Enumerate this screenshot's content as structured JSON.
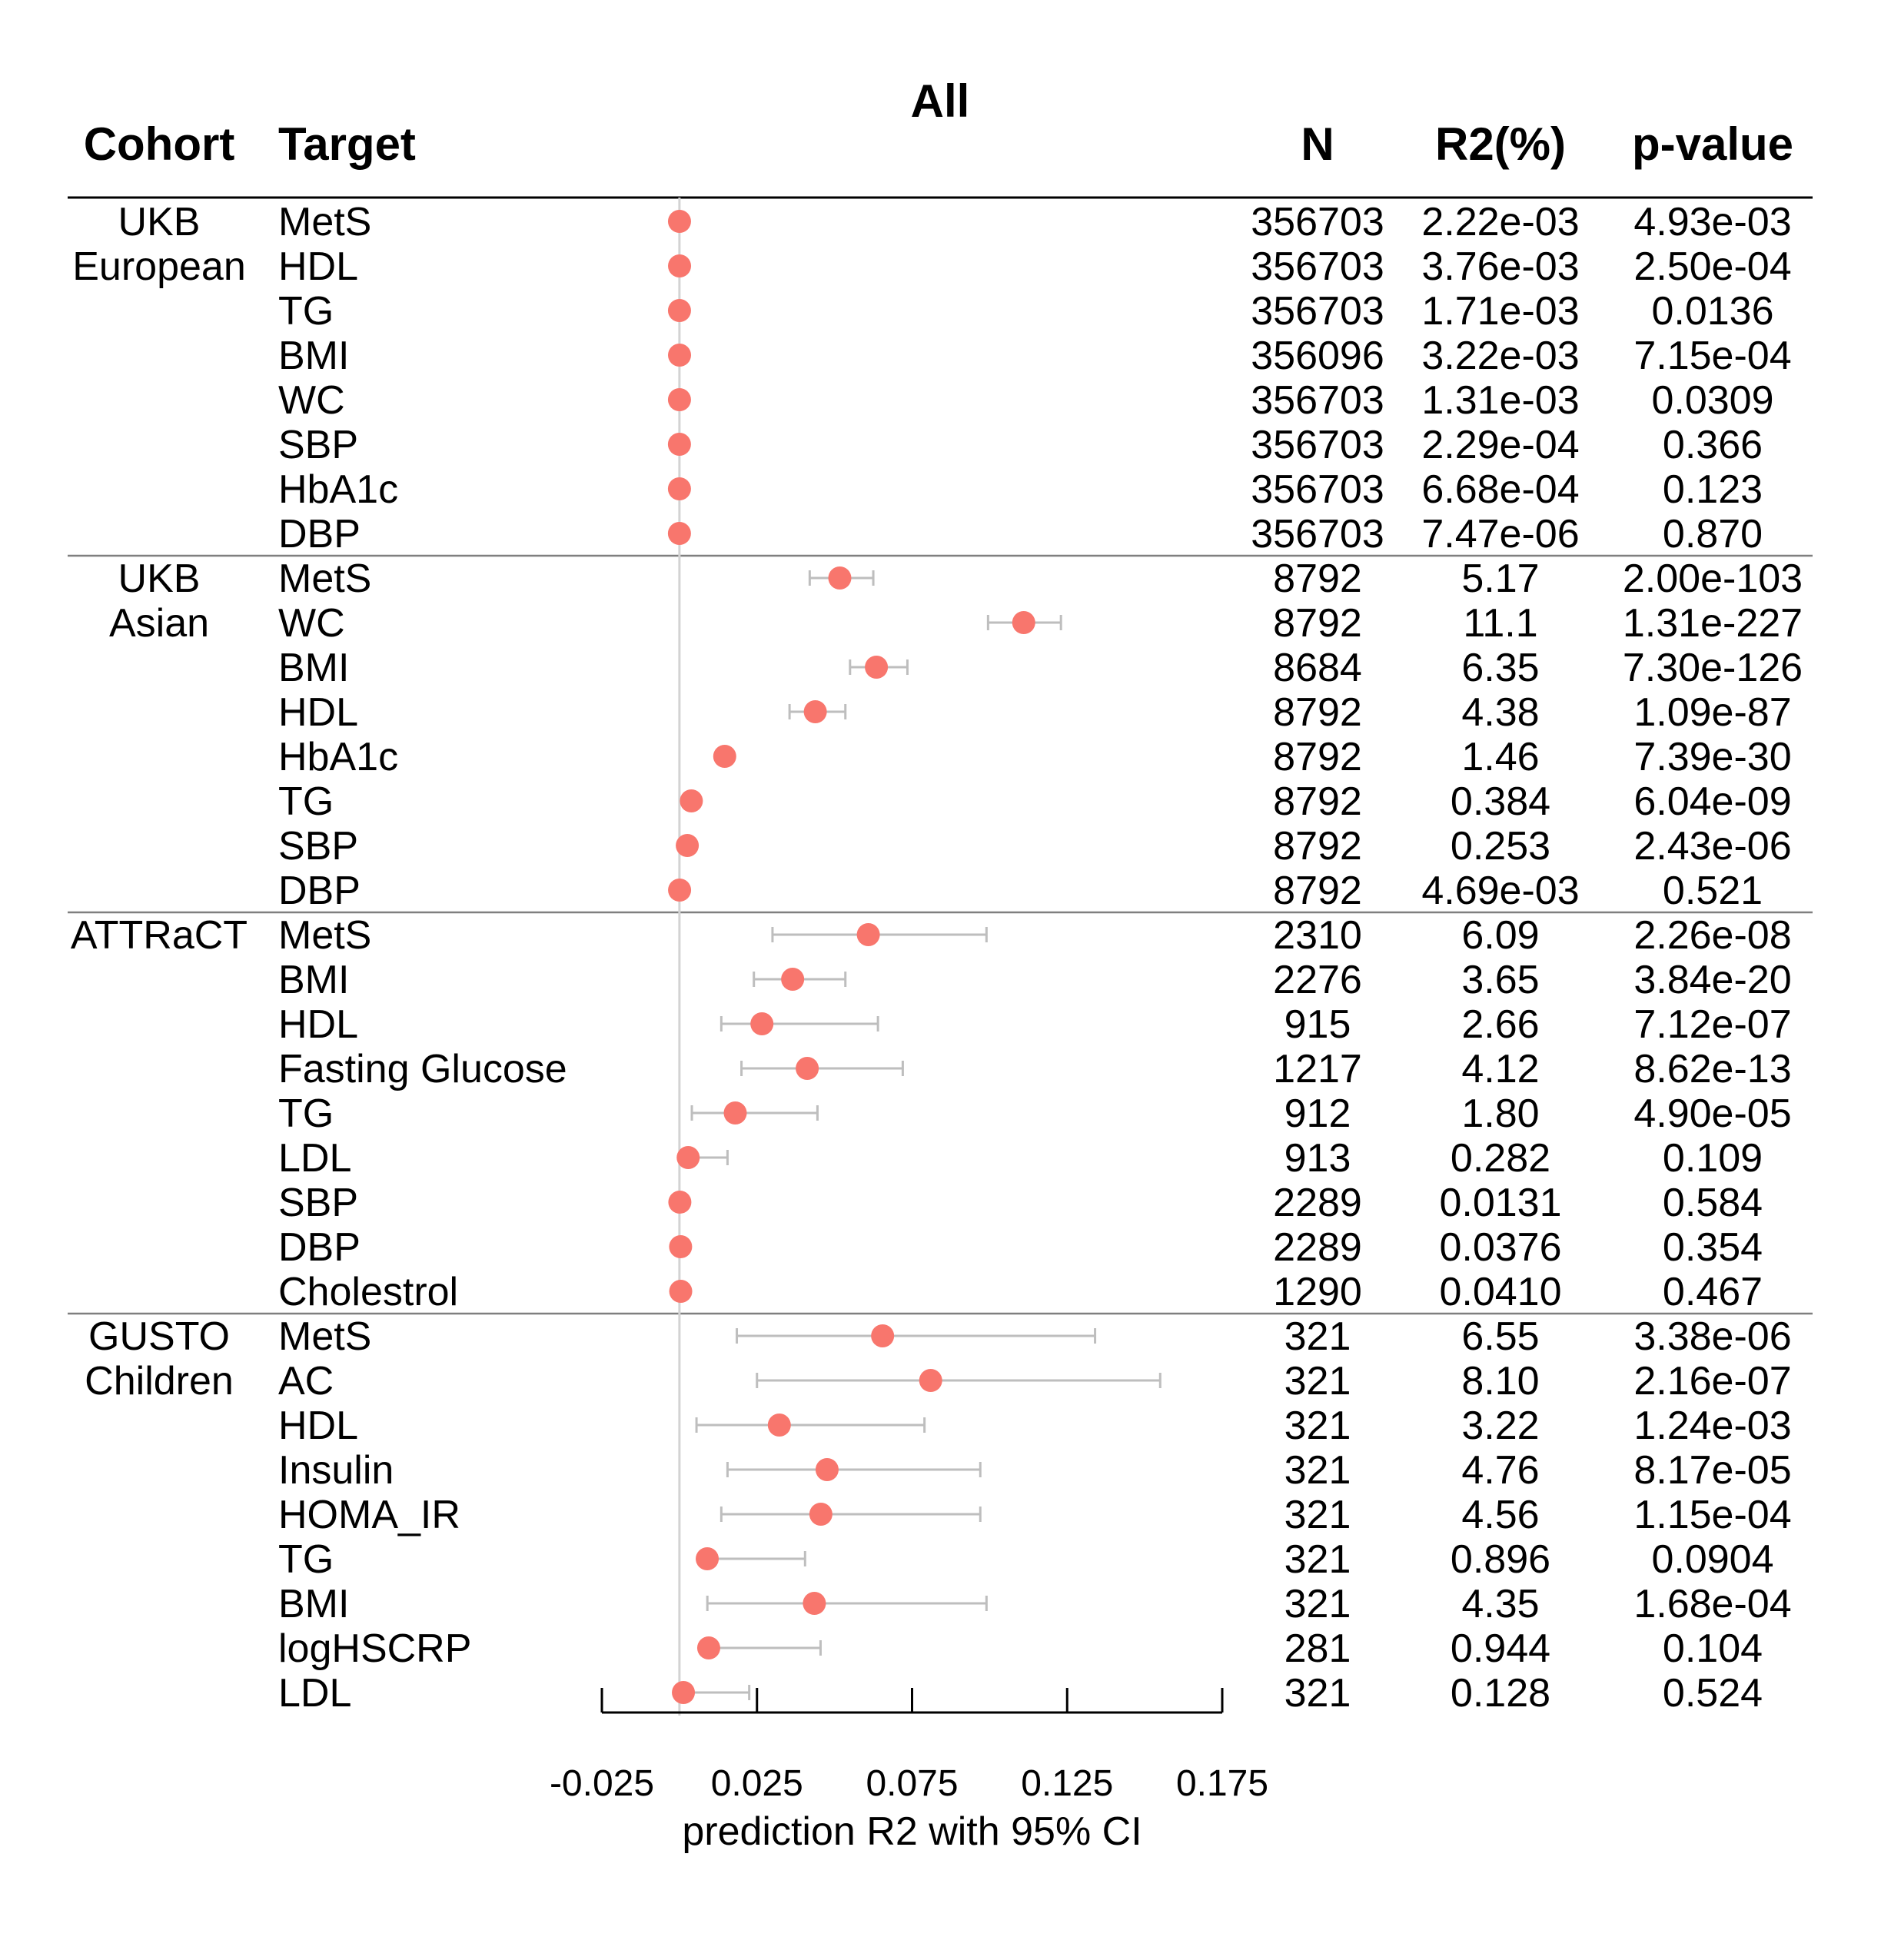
{
  "chart_data": {
    "type": "forest",
    "title": "All",
    "xlabel": "prediction R2 with 95% CI",
    "xlim": [
      -0.025,
      0.175
    ],
    "xticks": [
      "-0.025",
      "0.025",
      "0.075",
      "0.125",
      "0.175"
    ],
    "reference_line": 0,
    "grid": false,
    "headers": {
      "cohort": "Cohort",
      "target": "Target",
      "n": "N",
      "r2": "R2(%)",
      "p": "p-value"
    },
    "colors": {
      "point": "#F8766D",
      "ci": "#BEBEBE",
      "reference": "#D3D3D3",
      "rule": "#000000",
      "divider": "#7F7F7F"
    },
    "groups": [
      {
        "cohort": [
          "UKB",
          "European"
        ],
        "rows": [
          {
            "target": "MetS",
            "n": "356703",
            "r2": "2.22e-03",
            "p": "4.93e-03",
            "est": 2.22e-05,
            "lo": 2.22e-05,
            "hi": 2.22e-05
          },
          {
            "target": "HDL",
            "n": "356703",
            "r2": "3.76e-03",
            "p": "2.50e-04",
            "est": 3.76e-05,
            "lo": 3.76e-05,
            "hi": 3.76e-05
          },
          {
            "target": "TG",
            "n": "356703",
            "r2": "1.71e-03",
            "p": "0.0136",
            "est": 1.71e-05,
            "lo": 1.71e-05,
            "hi": 1.71e-05
          },
          {
            "target": "BMI",
            "n": "356096",
            "r2": "3.22e-03",
            "p": "7.15e-04",
            "est": 3.22e-05,
            "lo": 3.22e-05,
            "hi": 3.22e-05
          },
          {
            "target": "WC",
            "n": "356703",
            "r2": "1.31e-03",
            "p": "0.0309",
            "est": 1.31e-05,
            "lo": 1.31e-05,
            "hi": 1.31e-05
          },
          {
            "target": "SBP",
            "n": "356703",
            "r2": "2.29e-04",
            "p": "0.366",
            "est": 2.3e-06,
            "lo": 2.3e-06,
            "hi": 2.3e-06
          },
          {
            "target": "HbA1c",
            "n": "356703",
            "r2": "6.68e-04",
            "p": "0.123",
            "est": 6.7e-06,
            "lo": 6.7e-06,
            "hi": 6.7e-06
          },
          {
            "target": "DBP",
            "n": "356703",
            "r2": "7.47e-06",
            "p": "0.870",
            "est": 1e-07,
            "lo": 1e-07,
            "hi": 1e-07
          }
        ]
      },
      {
        "cohort": [
          "UKB",
          "Asian"
        ],
        "rows": [
          {
            "target": "MetS",
            "n": "8792",
            "r2": "5.17",
            "p": "2.00e-103",
            "est": 0.0517,
            "lo": 0.042,
            "hi": 0.0625
          },
          {
            "target": "WC",
            "n": "8792",
            "r2": "11.1",
            "p": "1.31e-227",
            "est": 0.111,
            "lo": 0.0995,
            "hi": 0.123
          },
          {
            "target": "BMI",
            "n": "8684",
            "r2": "6.35",
            "p": "7.30e-126",
            "est": 0.0635,
            "lo": 0.055,
            "hi": 0.0735
          },
          {
            "target": "HDL",
            "n": "8792",
            "r2": "4.38",
            "p": "1.09e-87",
            "est": 0.0438,
            "lo": 0.0355,
            "hi": 0.0535
          },
          {
            "target": "HbA1c",
            "n": "8792",
            "r2": "1.46",
            "p": "7.39e-30",
            "est": 0.0146,
            "lo": 0.0146,
            "hi": 0.0146
          },
          {
            "target": "TG",
            "n": "8792",
            "r2": "0.384",
            "p": "6.04e-09",
            "est": 0.00384,
            "lo": 0.00384,
            "hi": 0.00384
          },
          {
            "target": "SBP",
            "n": "8792",
            "r2": "0.253",
            "p": "2.43e-06",
            "est": 0.00253,
            "lo": 0.00253,
            "hi": 0.00253
          },
          {
            "target": "DBP",
            "n": "8792",
            "r2": "4.69e-03",
            "p": "0.521",
            "est": 4.69e-05,
            "lo": 4.69e-05,
            "hi": 4.69e-05
          }
        ]
      },
      {
        "cohort": [
          "ATTRaCT"
        ],
        "rows": [
          {
            "target": "MetS",
            "n": "2310",
            "r2": "6.09",
            "p": "2.26e-08",
            "est": 0.0609,
            "lo": 0.03,
            "hi": 0.099
          },
          {
            "target": "BMI",
            "n": "2276",
            "r2": "3.65",
            "p": "3.84e-20",
            "est": 0.0365,
            "lo": 0.024,
            "hi": 0.0535
          },
          {
            "target": "HDL",
            "n": "915",
            "r2": "2.66",
            "p": "7.12e-07",
            "est": 0.0266,
            "lo": 0.0135,
            "hi": 0.064
          },
          {
            "target": "Fasting Glucose",
            "n": "1217",
            "r2": "4.12",
            "p": "8.62e-13",
            "est": 0.0412,
            "lo": 0.02,
            "hi": 0.072
          },
          {
            "target": "TG",
            "n": "912",
            "r2": "1.80",
            "p": "4.90e-05",
            "est": 0.018,
            "lo": 0.004,
            "hi": 0.0445
          },
          {
            "target": "LDL",
            "n": "913",
            "r2": "0.282",
            "p": "0.109",
            "est": 0.00282,
            "lo": 0.00282,
            "hi": 0.0155
          },
          {
            "target": "SBP",
            "n": "2289",
            "r2": "0.0131",
            "p": "0.584",
            "est": 0.000131,
            "lo": 0.000131,
            "hi": 0.000131
          },
          {
            "target": "DBP",
            "n": "2289",
            "r2": "0.0376",
            "p": "0.354",
            "est": 0.000376,
            "lo": 0.000376,
            "hi": 0.000376
          },
          {
            "target": "Cholestrol",
            "n": "1290",
            "r2": "0.0410",
            "p": "0.467",
            "est": 0.00041,
            "lo": 0.00041,
            "hi": 0.00041
          }
        ]
      },
      {
        "cohort": [
          "GUSTO",
          "Children"
        ],
        "rows": [
          {
            "target": "MetS",
            "n": "321",
            "r2": "6.55",
            "p": "3.38e-06",
            "est": 0.0655,
            "lo": 0.0185,
            "hi": 0.134
          },
          {
            "target": "AC",
            "n": "321",
            "r2": "8.10",
            "p": "2.16e-07",
            "est": 0.081,
            "lo": 0.025,
            "hi": 0.155
          },
          {
            "target": "HDL",
            "n": "321",
            "r2": "3.22",
            "p": "1.24e-03",
            "est": 0.0322,
            "lo": 0.0055,
            "hi": 0.079
          },
          {
            "target": "Insulin",
            "n": "321",
            "r2": "4.76",
            "p": "8.17e-05",
            "est": 0.0476,
            "lo": 0.0155,
            "hi": 0.097
          },
          {
            "target": "HOMA_IR",
            "n": "321",
            "r2": "4.56",
            "p": "1.15e-04",
            "est": 0.0456,
            "lo": 0.0135,
            "hi": 0.097
          },
          {
            "target": "TG",
            "n": "321",
            "r2": "0.896",
            "p": "0.0904",
            "est": 0.00896,
            "lo": 0.00896,
            "hi": 0.0405
          },
          {
            "target": "BMI",
            "n": "321",
            "r2": "4.35",
            "p": "1.68e-04",
            "est": 0.0435,
            "lo": 0.009,
            "hi": 0.099
          },
          {
            "target": "logHSCRP",
            "n": "281",
            "r2": "0.944",
            "p": "0.104",
            "est": 0.00944,
            "lo": 0.00944,
            "hi": 0.0455
          },
          {
            "target": "LDL",
            "n": "321",
            "r2": "0.128",
            "p": "0.524",
            "est": 0.00128,
            "lo": 0.00128,
            "hi": 0.0225
          }
        ]
      }
    ]
  }
}
